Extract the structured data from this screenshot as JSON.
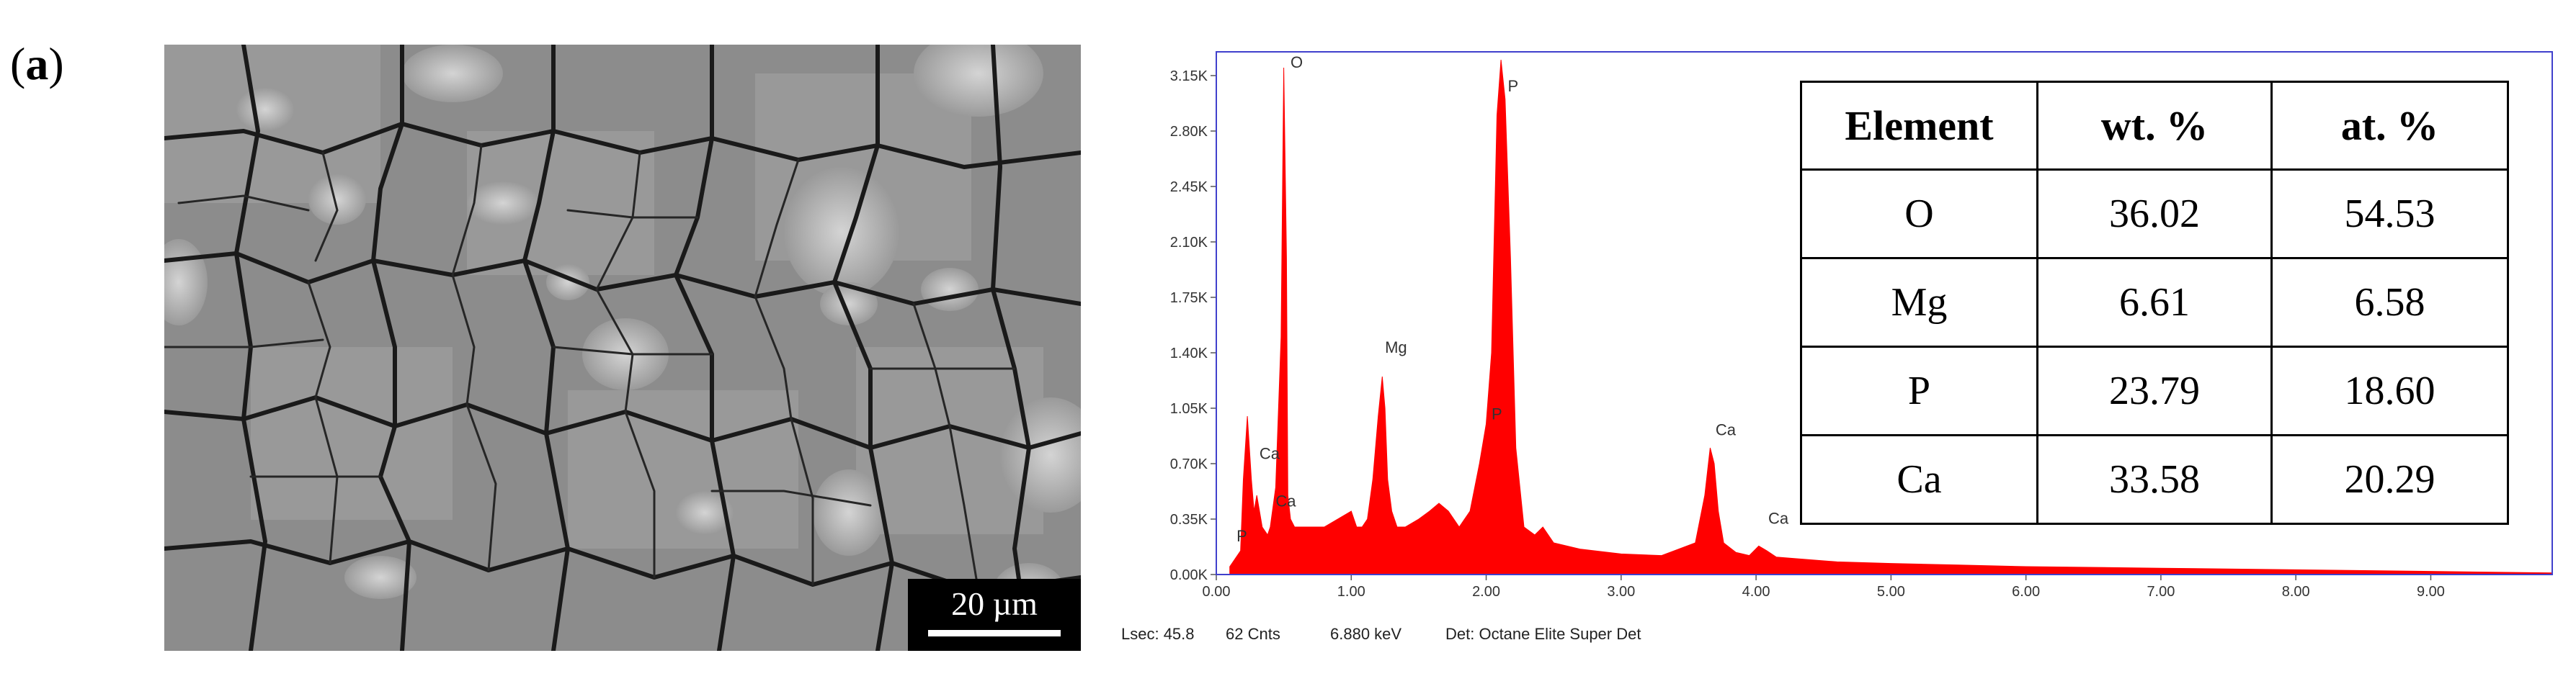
{
  "panel_label_open": "(",
  "panel_label_letter": "a",
  "panel_label_close": ")",
  "sem": {
    "scale_bar_label": "20 µm"
  },
  "table": {
    "headers": [
      "Element",
      "wt. %",
      "at. %"
    ],
    "rows": [
      [
        "O",
        "36.02",
        "54.53"
      ],
      [
        "Mg",
        "6.61",
        "6.58"
      ],
      [
        "P",
        "23.79",
        "18.60"
      ],
      [
        "Ca",
        "33.58",
        "20.29"
      ]
    ]
  },
  "spectrum_footer": {
    "lsec": "Lsec: 45.8",
    "cnts": "62 Cnts",
    "kev": "6.880 keV",
    "det": "Det: Octane Elite Super Det"
  },
  "chart_data": {
    "type": "area",
    "title": "",
    "xlabel": "",
    "ylabel": "",
    "xlim": [
      0,
      9.9
    ],
    "ylim": [
      0,
      3.3
    ],
    "x_ticks": [
      "0.00",
      "1.00",
      "2.00",
      "3.00",
      "4.00",
      "5.00",
      "6.00",
      "7.00",
      "8.00",
      "9.00"
    ],
    "x_tick_values": [
      0,
      1,
      2,
      3,
      4,
      5,
      6,
      7,
      8,
      9
    ],
    "y_ticks": [
      "0.00K",
      "0.35K",
      "0.70K",
      "1.05K",
      "1.40K",
      "1.75K",
      "2.10K",
      "2.45K",
      "2.80K",
      "3.15K"
    ],
    "y_tick_values": [
      0,
      0.35,
      0.7,
      1.05,
      1.4,
      1.75,
      2.1,
      2.45,
      2.8,
      3.15
    ],
    "series_color": "#ff0000",
    "frame_color": "#4040cc",
    "series": [
      {
        "x": [
          0.1,
          0.18,
          0.2,
          0.23,
          0.26,
          0.28,
          0.3,
          0.34,
          0.38,
          0.4,
          0.44,
          0.48,
          0.5,
          0.52,
          0.53,
          0.55,
          0.58,
          0.62,
          0.7,
          0.8,
          0.9,
          1.0,
          1.04,
          1.08,
          1.12,
          1.16,
          1.2,
          1.23,
          1.25,
          1.27,
          1.3,
          1.34,
          1.4,
          1.5,
          1.58,
          1.65,
          1.72,
          1.8,
          1.88,
          1.95,
          2.0,
          2.04,
          2.08,
          2.11,
          2.14,
          2.18,
          2.22,
          2.28,
          2.36,
          2.42,
          2.5,
          2.7,
          3.0,
          3.3,
          3.55,
          3.62,
          3.66,
          3.69,
          3.72,
          3.76,
          3.85,
          3.95,
          4.02,
          4.08,
          4.15,
          4.3,
          4.6,
          5.0,
          5.5,
          6.0,
          7.0,
          8.0,
          9.0,
          9.9
        ],
        "y": [
          0.05,
          0.15,
          0.6,
          1.0,
          0.6,
          0.4,
          0.5,
          0.3,
          0.25,
          0.3,
          0.55,
          1.5,
          3.2,
          2.0,
          0.5,
          0.35,
          0.3,
          0.3,
          0.3,
          0.3,
          0.35,
          0.4,
          0.3,
          0.3,
          0.35,
          0.6,
          1.0,
          1.25,
          1.05,
          0.6,
          0.4,
          0.3,
          0.3,
          0.35,
          0.4,
          0.45,
          0.4,
          0.3,
          0.4,
          0.7,
          0.95,
          1.4,
          2.9,
          3.25,
          3.0,
          2.0,
          0.8,
          0.3,
          0.25,
          0.3,
          0.2,
          0.16,
          0.13,
          0.12,
          0.2,
          0.5,
          0.8,
          0.7,
          0.4,
          0.2,
          0.14,
          0.12,
          0.18,
          0.15,
          0.11,
          0.1,
          0.08,
          0.07,
          0.06,
          0.05,
          0.04,
          0.03,
          0.02,
          0.01
        ]
      }
    ],
    "peak_labels": [
      {
        "text": "O",
        "x": 0.55,
        "y": 3.2
      },
      {
        "text": "P",
        "x": 2.16,
        "y": 3.05
      },
      {
        "text": "Mg",
        "x": 1.25,
        "y": 1.4
      },
      {
        "text": "P",
        "x": 2.04,
        "y": 0.98
      },
      {
        "text": "Ca",
        "x": 0.32,
        "y": 0.73
      },
      {
        "text": "Ca",
        "x": 0.44,
        "y": 0.43
      },
      {
        "text": "P",
        "x": 0.15,
        "y": 0.21
      },
      {
        "text": "Ca",
        "x": 3.7,
        "y": 0.88
      },
      {
        "text": "Ca",
        "x": 4.09,
        "y": 0.32
      }
    ]
  }
}
